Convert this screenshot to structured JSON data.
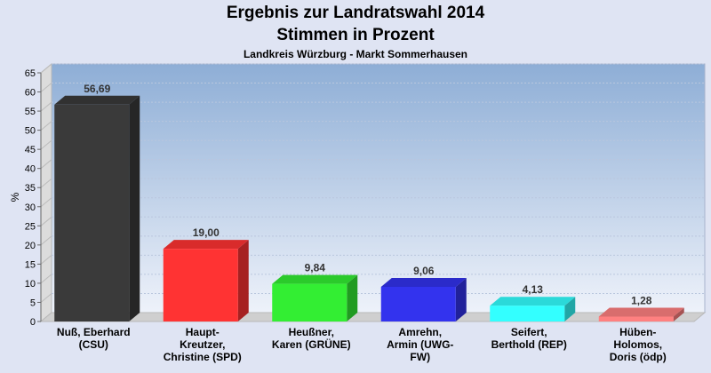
{
  "chart_data": {
    "type": "bar",
    "title": "Ergebnis zur Landratswahl 2014",
    "subtitle": "Stimmen in Prozent",
    "subsubtitle": "Landkreis Würzburg - Markt Sommerhausen",
    "ylabel": "%",
    "ylim": [
      0,
      65
    ],
    "yticks": [
      0,
      5,
      10,
      15,
      20,
      25,
      30,
      35,
      40,
      45,
      50,
      55,
      60,
      65
    ],
    "grid": true,
    "categories": [
      [
        "Nuß, Eberhard",
        "(CSU)"
      ],
      [
        "Haupt-",
        "Kreutzer,",
        "Christine (SPD)"
      ],
      [
        "Heußner,",
        "Karen (GRÜNE)"
      ],
      [
        "Amrehn,",
        "Armin (UWG-",
        "FW)"
      ],
      [
        "Seifert,",
        "Berthold (REP)"
      ],
      [
        "Hüben-",
        "Holomos,",
        "Doris (ödp)"
      ]
    ],
    "values": [
      56.69,
      19.0,
      9.84,
      9.06,
      4.13,
      1.28
    ],
    "value_labels": [
      "56,69",
      "19,00",
      "9,84",
      "9,06",
      "4,13",
      "1,28"
    ],
    "colors": [
      "#3a3a3a",
      "#ff3333",
      "#33ee33",
      "#3333ee",
      "#33ffff",
      "#ff8080"
    ]
  }
}
